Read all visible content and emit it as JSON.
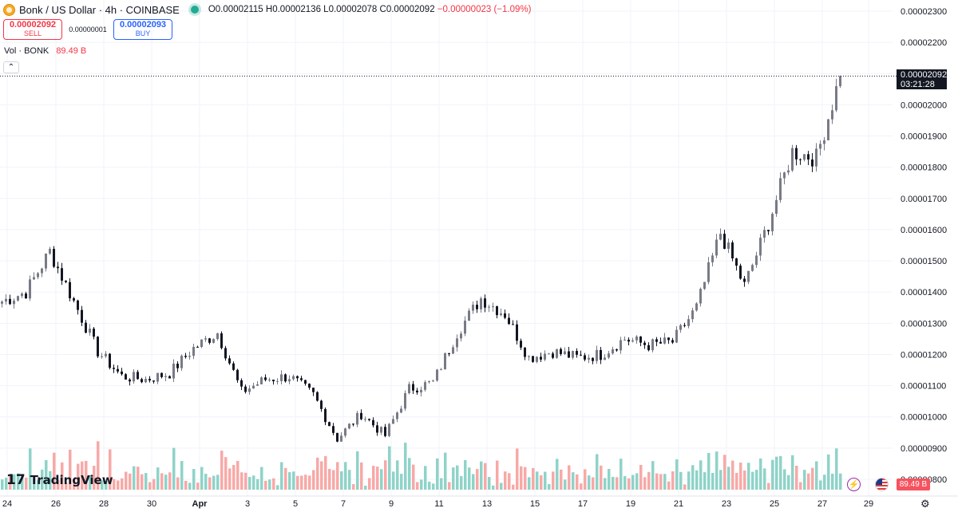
{
  "header": {
    "symbol_title": "Bonk / US Dollar · 4h · COINBASE",
    "ohlc_open": "O0.00002115",
    "ohlc_high": "H0.00002136",
    "ohlc_low": "L0.00002078",
    "ohlc_close": "C0.00002092",
    "ohlc_change": "−0.00000023 (−1.09%)"
  },
  "trade": {
    "sell_price": "0.00002092",
    "sell_label": "SELL",
    "spread": "0.00000001",
    "buy_price": "0.00002093",
    "buy_label": "BUY"
  },
  "volume_legend": {
    "label": "Vol · BONK",
    "value": "89.49 B"
  },
  "collapse_glyph": "⌃",
  "brand": {
    "mark": "17",
    "name": "TradingView"
  },
  "last_price": {
    "price": "0.00002092",
    "countdown": "03:21:28"
  },
  "volume_tag": "89.49 B",
  "icons": {
    "bolt": "bolt-icon",
    "flag": "us-flag-icon",
    "settings": "gear-icon"
  },
  "colors": {
    "up": "#22ab94",
    "down": "#f23645",
    "candle_up": "#787b86",
    "candle_down": "#131722",
    "vol_up": "#8fd3c8",
    "vol_down": "#f7a9a7",
    "grid": "#f0f3fa"
  },
  "chart_data": {
    "type": "candlestick",
    "title": "Bonk / US Dollar · 4h · COINBASE",
    "y_axis_ticks": [
      "0.00002300",
      "0.00002200",
      "0.00002100",
      "0.00002000",
      "0.00001900",
      "0.00001800",
      "0.00001700",
      "0.00001600",
      "0.00001500",
      "0.00001400",
      "0.00001300",
      "0.00001200",
      "0.00001100",
      "0.00001000",
      "0.00000900",
      "0.00000800"
    ],
    "x_axis_ticks": [
      "24",
      "26",
      "28",
      "30",
      "Apr",
      "3",
      "5",
      "7",
      "9",
      "11",
      "13",
      "15",
      "17",
      "19",
      "21",
      "23",
      "25",
      "27",
      "29"
    ],
    "ylim": [
      7.9e-06,
      2.33e-05
    ],
    "last_price": 2.092e-05,
    "approx_close_path": [
      {
        "date": "Mar 24",
        "close": 1.37e-05
      },
      {
        "date": "Mar 25",
        "close": 1.4e-05
      },
      {
        "date": "Mar 26",
        "close": 1.53e-05
      },
      {
        "date": "Mar 27",
        "close": 1.37e-05
      },
      {
        "date": "Mar 28",
        "close": 1.21e-05
      },
      {
        "date": "Mar 29",
        "close": 1.13e-05
      },
      {
        "date": "Mar 30",
        "close": 1.12e-05
      },
      {
        "date": "Mar 31",
        "close": 1.14e-05
      },
      {
        "date": "Apr 1",
        "close": 1.22e-05
      },
      {
        "date": "Apr 2",
        "close": 1.27e-05
      },
      {
        "date": "Apr 3",
        "close": 1.08e-05
      },
      {
        "date": "Apr 4",
        "close": 1.12e-05
      },
      {
        "date": "Apr 5",
        "close": 1.13e-05
      },
      {
        "date": "Apr 6",
        "close": 1.07e-05
      },
      {
        "date": "Apr 7",
        "close": 9.3e-06
      },
      {
        "date": "Apr 8",
        "close": 1.01e-05
      },
      {
        "date": "Apr 9",
        "close": 9.4e-06
      },
      {
        "date": "Apr 10",
        "close": 1.09e-05
      },
      {
        "date": "Apr 11",
        "close": 1.11e-05
      },
      {
        "date": "Apr 12",
        "close": 1.27e-05
      },
      {
        "date": "Apr 13",
        "close": 1.38e-05
      },
      {
        "date": "Apr 14",
        "close": 1.33e-05
      },
      {
        "date": "Apr 15",
        "close": 1.19e-05
      },
      {
        "date": "Apr 16",
        "close": 1.21e-05
      },
      {
        "date": "Apr 17",
        "close": 1.19e-05
      },
      {
        "date": "Apr 18",
        "close": 1.2e-05
      },
      {
        "date": "Apr 19",
        "close": 1.25e-05
      },
      {
        "date": "Apr 20",
        "close": 1.23e-05
      },
      {
        "date": "Apr 21",
        "close": 1.24e-05
      },
      {
        "date": "Apr 22",
        "close": 1.35e-05
      },
      {
        "date": "Apr 23",
        "close": 1.59e-05
      },
      {
        "date": "Apr 24",
        "close": 1.42e-05
      },
      {
        "date": "Apr 25",
        "close": 1.62e-05
      },
      {
        "date": "Apr 26",
        "close": 1.85e-05
      },
      {
        "date": "Apr 27",
        "close": 1.83e-05
      },
      {
        "date": "Apr 28",
        "close": 2.092e-05
      }
    ],
    "grid": true,
    "legend": "none"
  }
}
